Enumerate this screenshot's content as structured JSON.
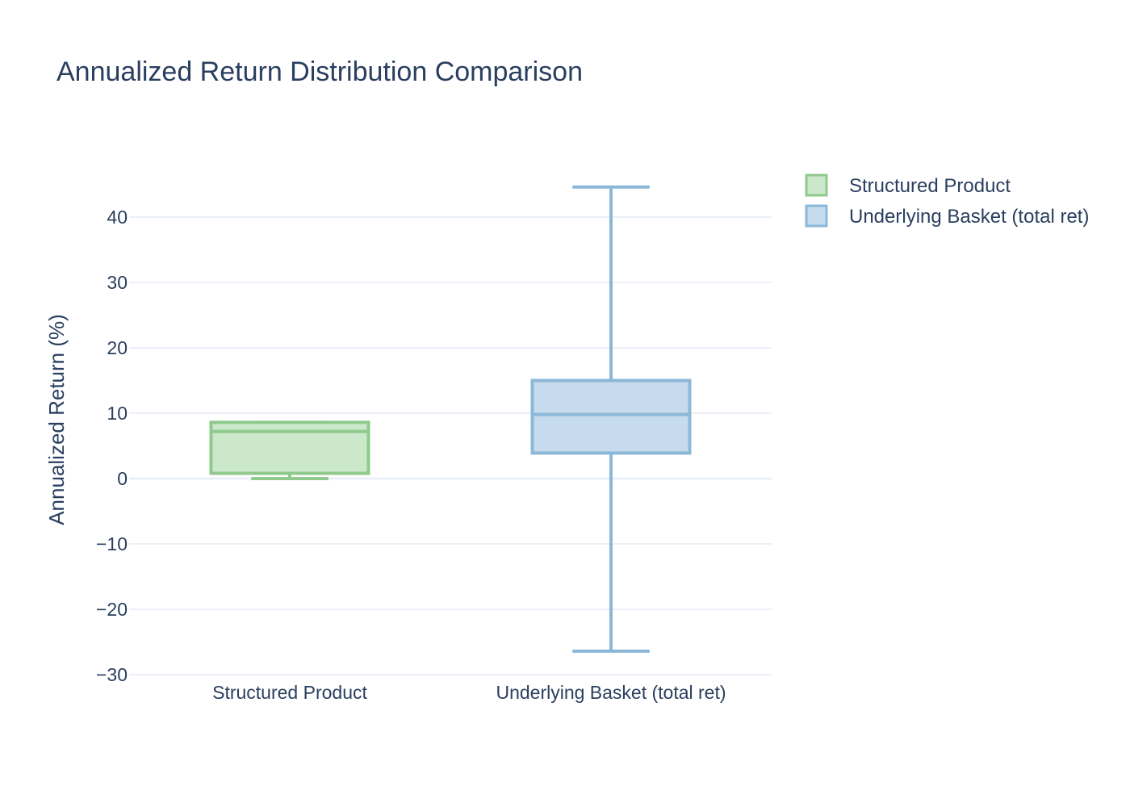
{
  "chart_data": {
    "type": "box",
    "title": "Annualized Return Distribution Comparison",
    "xlabel": "",
    "ylabel": "Annualized Return (%)",
    "ylim": [
      -31,
      48
    ],
    "yticks": [
      -30,
      -20,
      -10,
      0,
      10,
      20,
      30,
      40
    ],
    "ytick_labels": [
      "−30",
      "−20",
      "−10",
      "0",
      "10",
      "20",
      "30",
      "40"
    ],
    "grid": true,
    "legend_position": "top-right",
    "categories": [
      "Structured Product",
      "Underlying Basket (total ret)"
    ],
    "series": [
      {
        "name": "Structured Product",
        "color": "#8fc98c",
        "fill": "#cce8cb",
        "min": 0.0,
        "q1": 0.8,
        "median": 7.2,
        "q3": 8.6,
        "max": 8.6
      },
      {
        "name": "Underlying Basket (total ret)",
        "color": "#8cb8d8",
        "fill": "#c6dbed",
        "min": -26.4,
        "q1": 3.9,
        "median": 9.8,
        "q3": 15.0,
        "max": 44.6
      }
    ]
  }
}
